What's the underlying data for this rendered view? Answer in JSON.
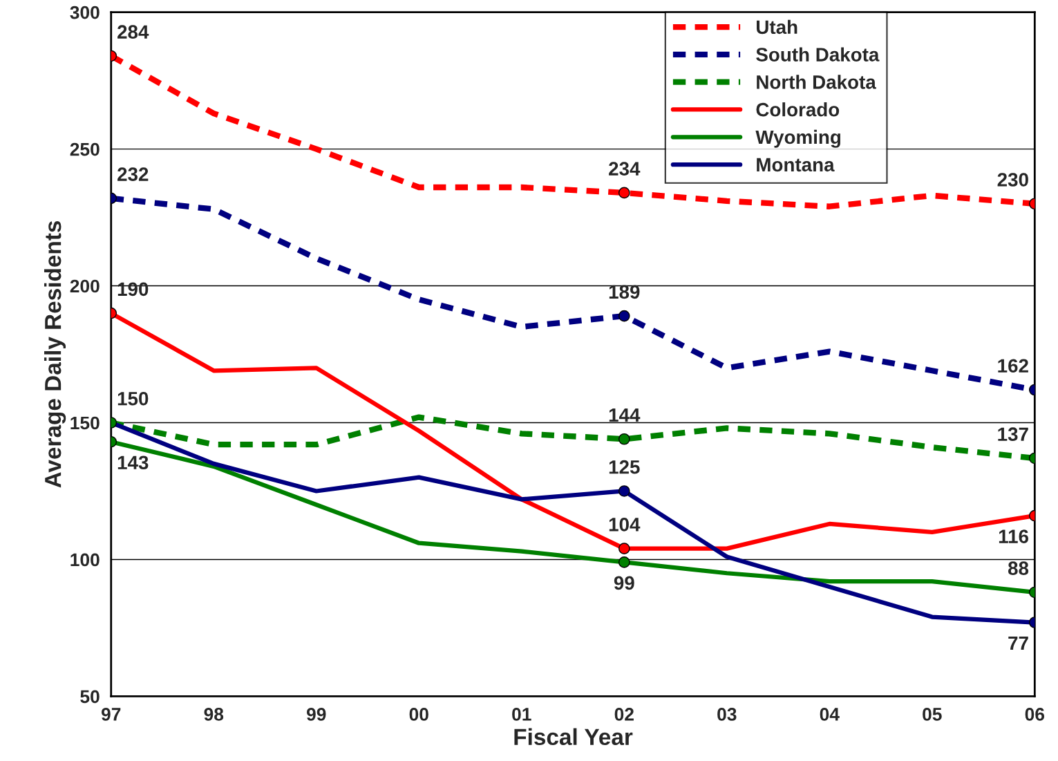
{
  "chart_data": {
    "type": "line",
    "xlabel": "Fiscal Year",
    "ylabel": "Average Daily Residents",
    "categories": [
      "97",
      "98",
      "99",
      "00",
      "01",
      "02",
      "03",
      "04",
      "05",
      "06"
    ],
    "ylim": [
      50,
      300
    ],
    "yticks": [
      50,
      100,
      150,
      200,
      250,
      300
    ],
    "grid": "y",
    "legend": "top right",
    "series": [
      {
        "name": "Utah",
        "color": "#ff0000",
        "line_style": "dashed",
        "values": [
          284,
          263,
          250,
          236,
          236,
          234,
          231,
          229,
          233,
          230
        ],
        "value_labels": [
          "284",
          null,
          null,
          null,
          null,
          "234",
          null,
          null,
          null,
          "230"
        ]
      },
      {
        "name": "South Dakota",
        "color": "#000080",
        "line_style": "dashed",
        "values": [
          232,
          228,
          210,
          195,
          185,
          189,
          170,
          176,
          169,
          162
        ],
        "value_labels": [
          "232",
          null,
          null,
          null,
          null,
          "189",
          null,
          null,
          null,
          "162"
        ]
      },
      {
        "name": "North Dakota",
        "color": "#008000",
        "line_style": "dashed",
        "values": [
          150,
          142,
          142,
          152,
          146,
          144,
          148,
          146,
          141,
          137
        ],
        "value_labels": [
          "150",
          null,
          null,
          null,
          null,
          "144",
          null,
          null,
          null,
          "137"
        ]
      },
      {
        "name": "Colorado",
        "color": "#ff0000",
        "line_style": "solid",
        "values": [
          190,
          169,
          170,
          147,
          122,
          104,
          104,
          113,
          110,
          116
        ],
        "value_labels": [
          "190",
          null,
          null,
          null,
          null,
          "104",
          null,
          null,
          null,
          "116"
        ]
      },
      {
        "name": "Wyoming",
        "color": "#008000",
        "line_style": "solid",
        "values": [
          143,
          134,
          120,
          106,
          103,
          99,
          95,
          92,
          92,
          88
        ],
        "value_labels": [
          "143",
          null,
          null,
          null,
          null,
          "99",
          null,
          null,
          null,
          "88"
        ]
      },
      {
        "name": "Montana",
        "color": "#000080",
        "line_style": "solid",
        "values": [
          150,
          135,
          125,
          130,
          122,
          125,
          101,
          90,
          79,
          77
        ],
        "value_labels": [
          null,
          null,
          null,
          null,
          null,
          "125",
          null,
          null,
          null,
          "77"
        ]
      }
    ]
  }
}
